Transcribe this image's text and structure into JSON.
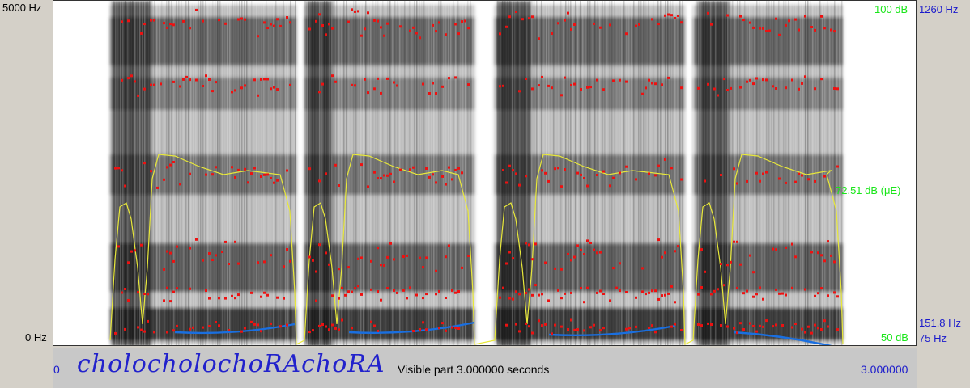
{
  "freq_axis": {
    "top": "5000 Hz",
    "bottom": "0 Hz"
  },
  "intensity_axis": {
    "top": "100 dB",
    "cursor": "72.51 dB (μE)",
    "bottom": "50 dB"
  },
  "pitch_axis": {
    "top": "1260 Hz",
    "mid": "151.8 Hz",
    "bottom": "75 Hz"
  },
  "transcript": "cholocholochoRAchoRA",
  "visible_part": "Visible part 3.000000 seconds",
  "time_start": "0",
  "time_end": "3.000000",
  "colors": {
    "formant": "#ee1111",
    "intensity": "#e8e83a",
    "pitch": "#1a6fe0",
    "spectrogram": "#000000"
  }
}
